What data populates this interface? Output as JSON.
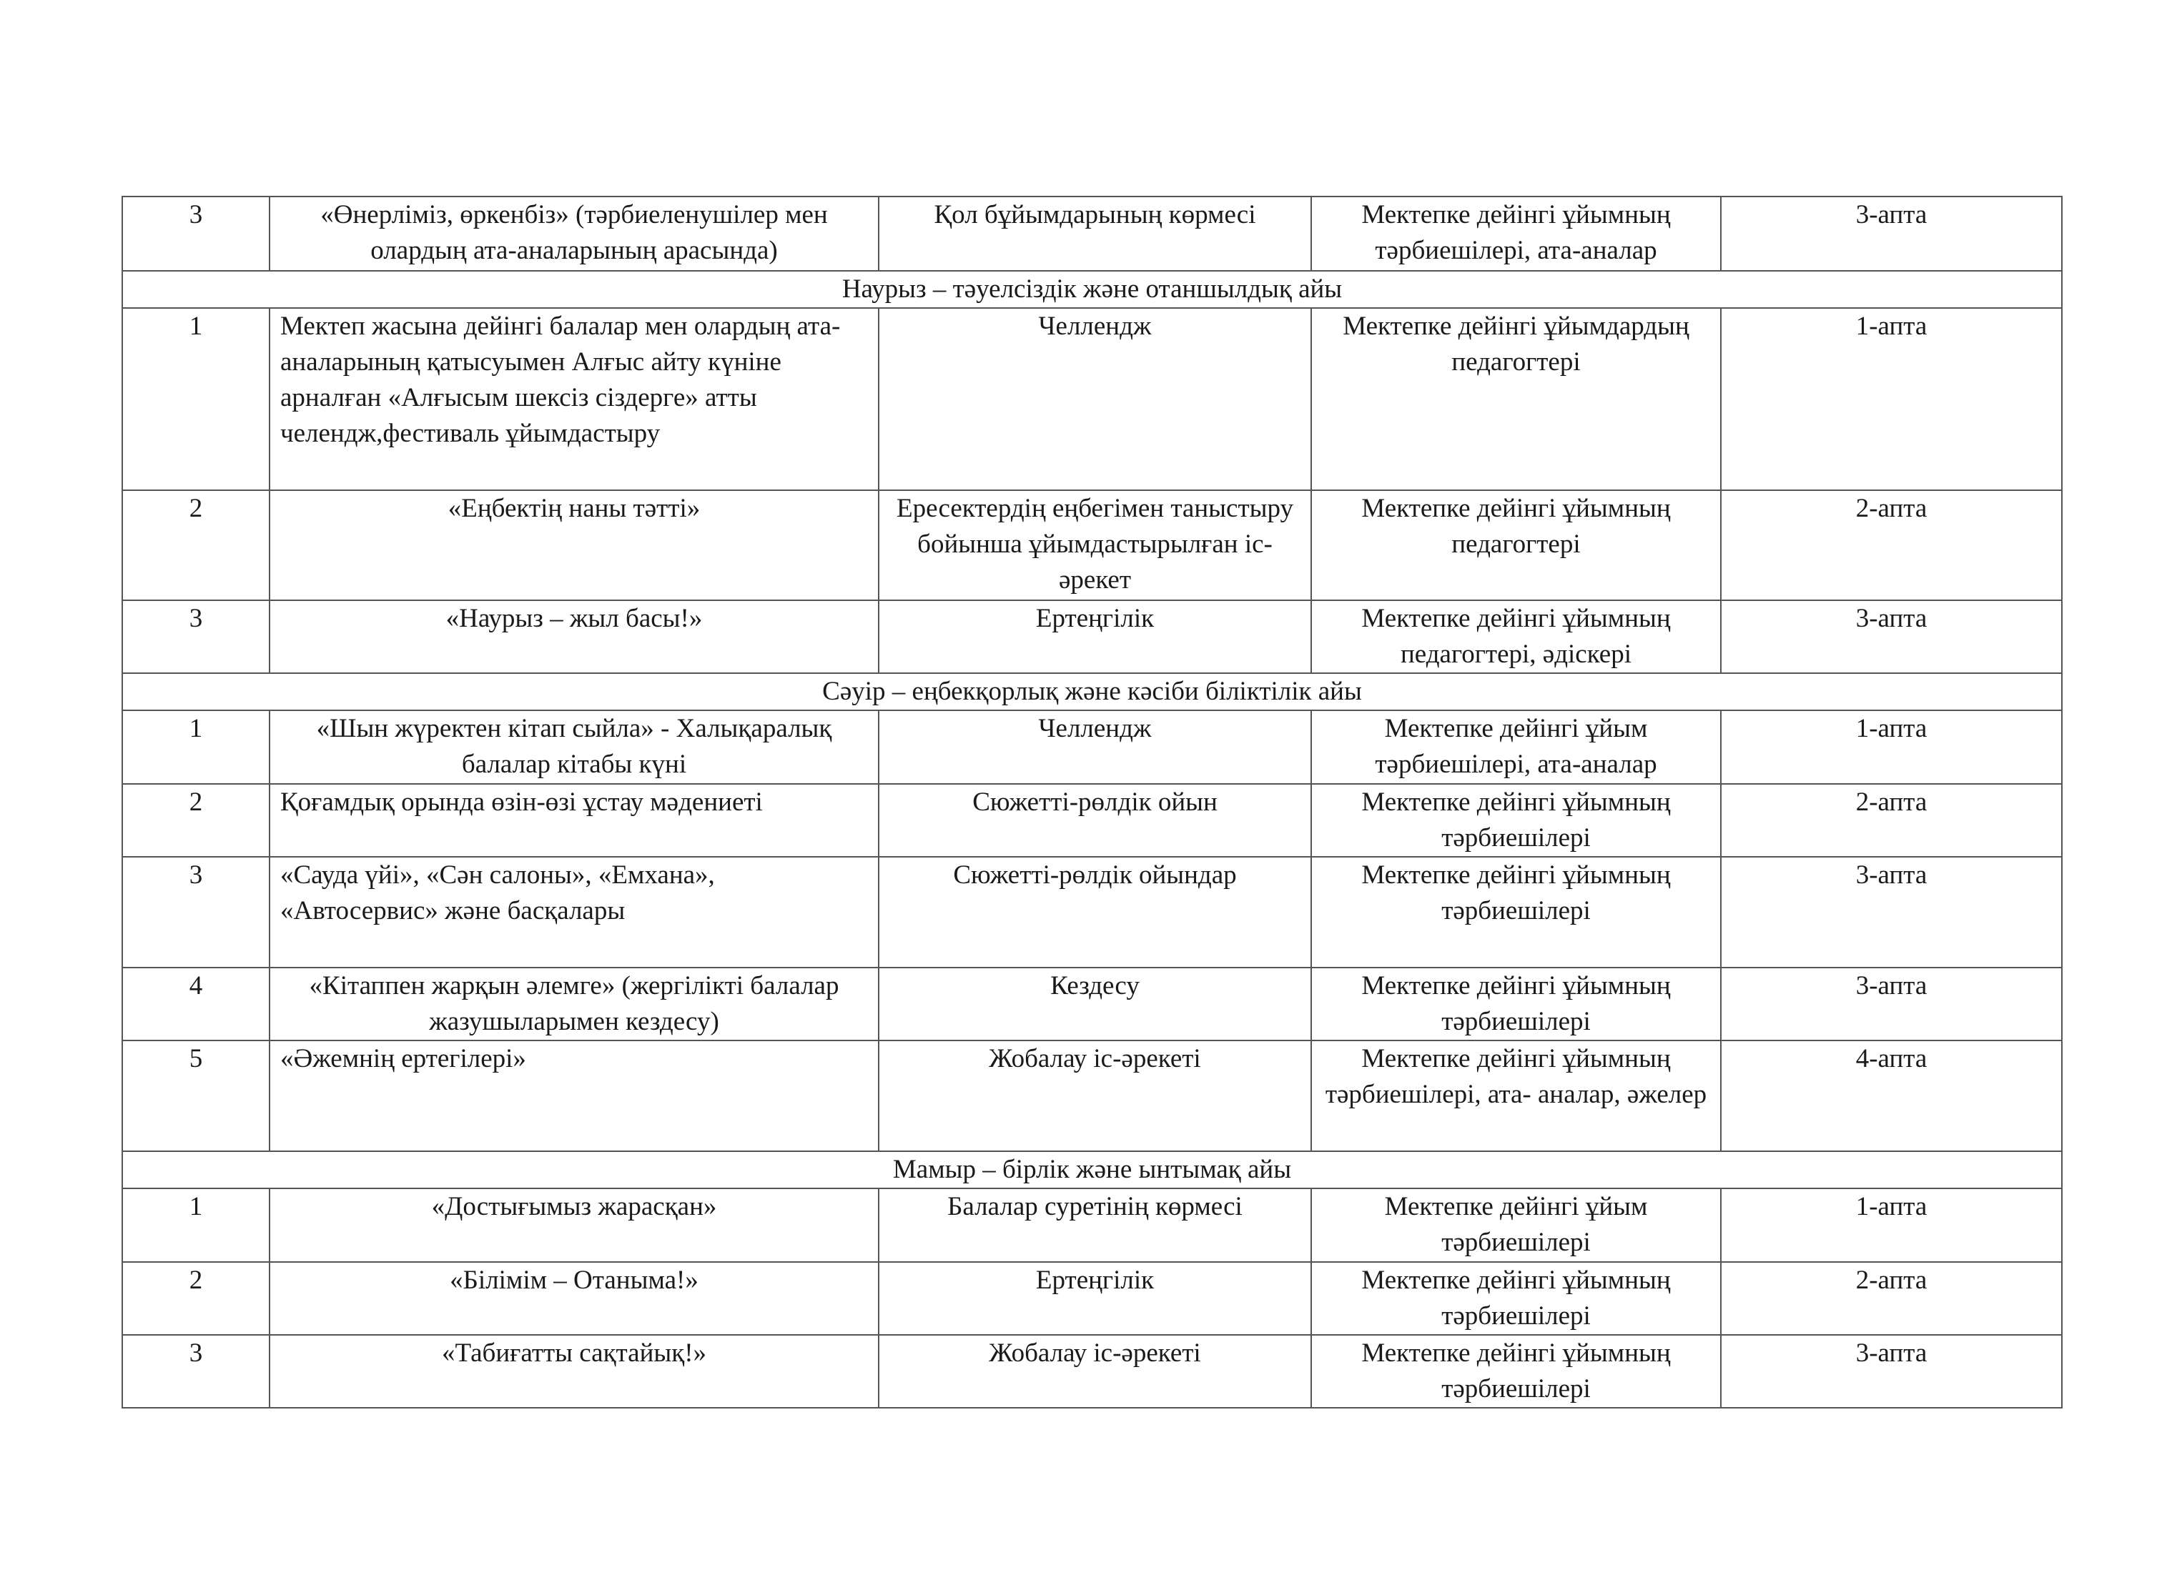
{
  "table": {
    "rows": [
      {
        "cells": [
          "3",
          "«Өнерліміз, өркенбіз» (тәрбиеленушілер мен олардың ата-аналарының арасында)",
          "Қол бұйымдарының көрмесі",
          "Мектепке дейінгі ұйымның тәрбиешілері, ата-аналар",
          "3-апта"
        ]
      },
      {
        "section": "Наурыз – тәуелсіздік және отаншылдық айы"
      },
      {
        "cells": [
          "1",
          "Мектеп жасына дейінгі балалар мен олардың ата-аналарының қатысуымен Алғыс айту күніне арналған «Алғысым шексіз сіздерге» атты челендж,фестиваль ұйымдастыру",
          "Челлендж",
          "Мектепке дейінгі ұйымдардың педагогтері",
          "1-апта"
        ]
      },
      {
        "cells": [
          "2",
          "«Еңбектің наны тәтті»",
          "Ересектердің еңбегімен таныстыру бойынша ұйымдастырылған іс-әрекет",
          "Мектепке дейінгі ұйымның педагогтері",
          "2-апта"
        ]
      },
      {
        "cells": [
          "3",
          "«Наурыз – жыл басы!»",
          "Ертеңгілік",
          "Мектепке дейінгі ұйымның педагогтері, әдіскері",
          "3-апта"
        ]
      },
      {
        "section": "Сәуір – еңбекқорлық және кәсіби біліктілік айы"
      },
      {
        "cells": [
          "1",
          "«Шын жүректен кітап сыйла» - Халықаралық балалар кітабы күні",
          "Челлендж",
          "Мектепке дейінгі ұйым тәрбиешілері, ата-аналар",
          "1-апта"
        ]
      },
      {
        "cells": [
          "2",
          "Қоғамдық орында өзін-өзі ұстау мәдениеті",
          "Сюжетті-рөлдік ойын",
          "Мектепке дейінгі ұйымның тәрбиешілері",
          "2-апта"
        ]
      },
      {
        "cells": [
          "3",
          "«Сауда үйі», «Сән салоны», «Емхана», «Автосервис» және басқалары",
          "Сюжетті-рөлдік ойындар",
          "Мектепке дейінгі ұйымның тәрбиешілері",
          "3-апта"
        ]
      },
      {
        "cells": [
          "4",
          "«Кітаппен жарқын әлемге» (жергілікті балалар жазушыларымен кездесу)",
          "Кездесу",
          "Мектепке дейінгі ұйымның тәрбиешілері",
          "3-апта"
        ]
      },
      {
        "cells": [
          "5",
          "«Әжемнің ертегілері»",
          "Жобалау іс-әрекеті",
          "Мектепке дейінгі ұйымның тәрбиешілері, ата- аналар, әжелер",
          "4-апта"
        ]
      },
      {
        "section": "Мамыр – бірлік және ынтымақ айы"
      },
      {
        "cells": [
          "1",
          "«Достығымыз жарасқан»",
          "Балалар суретінің көрмесі",
          "Мектепке дейінгі ұйым тәрбиешілері",
          "1-апта"
        ]
      },
      {
        "cells": [
          "2",
          "«Білімім – Отаныма!»",
          "Ертеңгілік",
          "Мектепке дейінгі ұйымның тәрбиешілері",
          "2-апта"
        ]
      },
      {
        "cells": [
          "3",
          "«Табиғатты сақтайық!»",
          "Жобалау іс-әрекеті",
          "Мектепке дейінгі ұйымның тәрбиешілері",
          "3-апта"
        ]
      }
    ]
  }
}
